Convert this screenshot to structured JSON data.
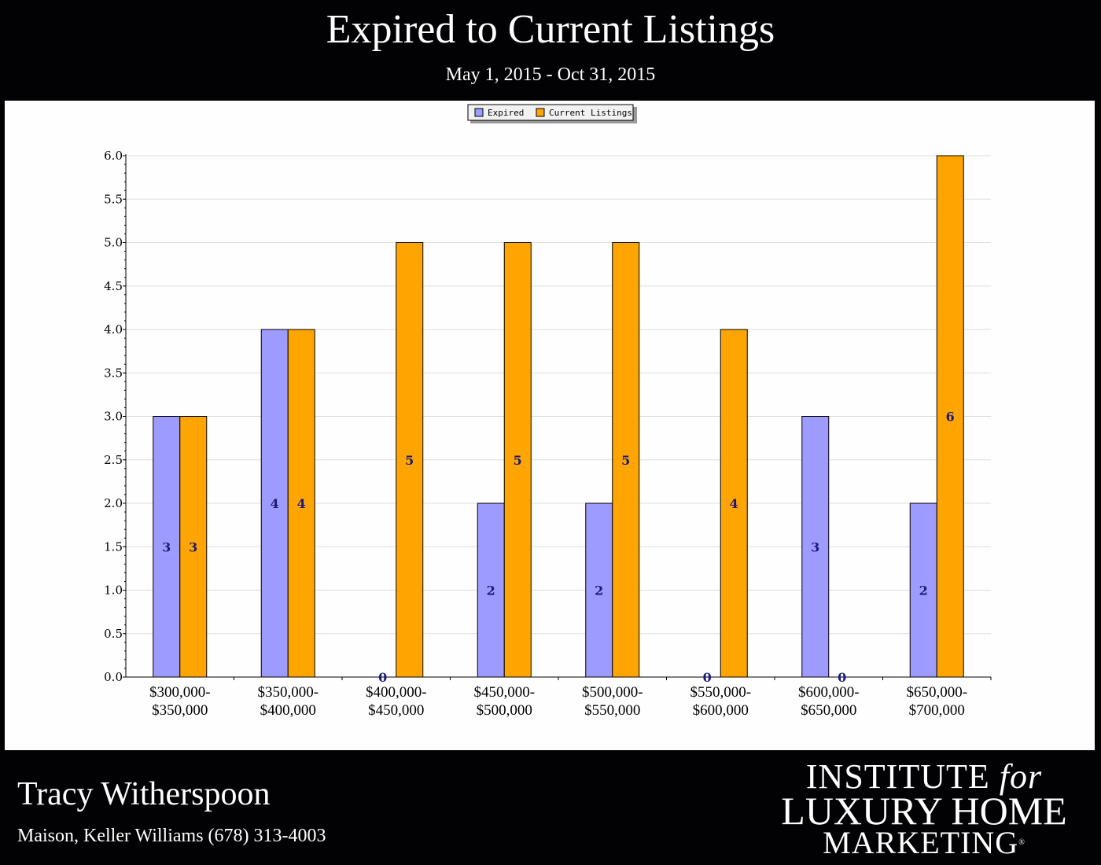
{
  "header": {
    "title": "Expired to Current Listings",
    "subtitle": "May 1, 2015 - Oct 31, 2015"
  },
  "footer": {
    "agent_name": "Tracy Witherspoon",
    "agent_details": "Maison, Keller Williams (678) 313-4003",
    "logo_line1_a": "INSTITUTE",
    "logo_line1_b": "for",
    "logo_line2": "LUXURY HOME",
    "logo_line3": "MARKETING",
    "logo_mark": "®"
  },
  "colors": {
    "expired": "#9d9bfd",
    "current": "#fea501",
    "label": "#1c1a7a"
  },
  "chart_data": {
    "type": "bar",
    "categories": [
      [
        "$300,000-",
        "$350,000"
      ],
      [
        "$350,000-",
        "$400,000"
      ],
      [
        "$400,000-",
        "$450,000"
      ],
      [
        "$450,000-",
        "$500,000"
      ],
      [
        "$500,000-",
        "$550,000"
      ],
      [
        "$550,000-",
        "$600,000"
      ],
      [
        "$600,000-",
        "$650,000"
      ],
      [
        "$650,000-",
        "$700,000"
      ]
    ],
    "series": [
      {
        "name": "Expired",
        "values": [
          3,
          4,
          0,
          2,
          2,
          0,
          3,
          2
        ]
      },
      {
        "name": "Current Listings",
        "values": [
          3,
          4,
          5,
          5,
          5,
          4,
          0,
          6
        ]
      }
    ],
    "ylim": [
      0,
      6
    ],
    "yticks": [
      "0.0",
      "0.5",
      "1.0",
      "1.5",
      "2.0",
      "2.5",
      "3.0",
      "3.5",
      "4.0",
      "4.5",
      "5.0",
      "5.5",
      "6.0"
    ],
    "grid": true,
    "legend": "top-center"
  }
}
